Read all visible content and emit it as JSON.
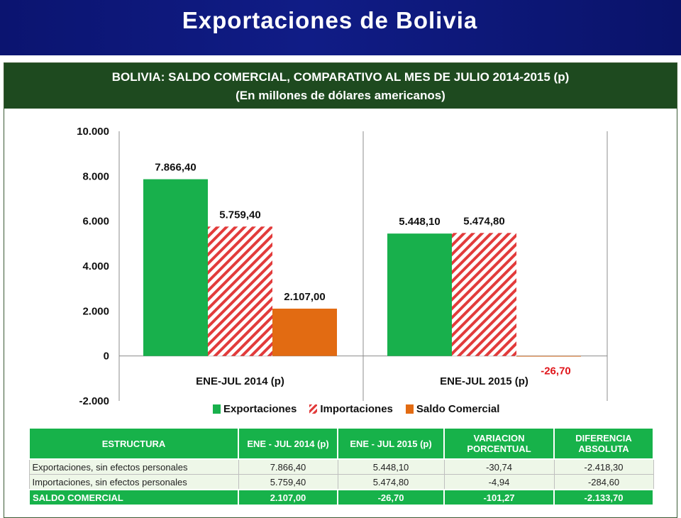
{
  "header": {
    "title": "Exportaciones de Bolivia"
  },
  "chart_data": {
    "type": "bar",
    "title": "BOLIVIA: SALDO COMERCIAL, COMPARATIVO AL MES DE JULIO 2014-2015 (p)",
    "subtitle": "(En millones de dólares americanos)",
    "categories": [
      "ENE-JUL 2014 (p)",
      "ENE-JUL 2015 (p)"
    ],
    "series": [
      {
        "name": "Exportaciones",
        "values": [
          7866.4,
          5448.1
        ],
        "labels": [
          "7.866,40",
          "5.448,10"
        ],
        "color": "#18b04c",
        "pattern": "solid"
      },
      {
        "name": "Importaciones",
        "values": [
          5759.4,
          5474.8
        ],
        "labels": [
          "5.759,40",
          "5.474,80"
        ],
        "color": "#e23b3b",
        "pattern": "hatched"
      },
      {
        "name": "Saldo Comercial",
        "values": [
          2107.0,
          -26.7
        ],
        "labels": [
          "2.107,00",
          "-26,70"
        ],
        "color": "#e26b12",
        "pattern": "solid"
      }
    ],
    "negative_label_color": "#e0161b",
    "ylim": [
      -2000,
      10000
    ],
    "yticks": [
      10000,
      8000,
      6000,
      4000,
      2000,
      0,
      -2000
    ],
    "ytick_labels": [
      "10.000",
      "8.000",
      "6.000",
      "4.000",
      "2.000",
      "0",
      "-2.000"
    ],
    "legend_position": "bottom",
    "grid": false
  },
  "table": {
    "headers": [
      "ESTRUCTURA",
      "ENE - JUL 2014 (p)",
      "ENE - JUL 2015 (p)",
      "VARIACION PORCENTUAL",
      "DIFERENCIA ABSOLUTA"
    ],
    "rows": [
      [
        "Exportaciones, sin efectos personales",
        "7.866,40",
        "5.448,10",
        "-30,74",
        "-2.418,30"
      ],
      [
        "Importaciones, sin efectos personales",
        "5.759,40",
        "5.474,80",
        "-4,94",
        "-284,60"
      ]
    ],
    "total": [
      "SALDO COMERCIAL",
      "2.107,00",
      "-26,70",
      "-101,27",
      "-2.133,70"
    ]
  }
}
